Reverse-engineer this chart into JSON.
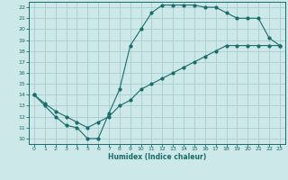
{
  "xlabel": "Humidex (Indice chaleur)",
  "bg_color": "#cce8e8",
  "grid_color": "#aacccc",
  "line_color": "#1a6b6b",
  "xlim": [
    -0.5,
    23.5
  ],
  "ylim": [
    9.5,
    22.5
  ],
  "xticks": [
    0,
    1,
    2,
    3,
    4,
    5,
    6,
    7,
    8,
    9,
    10,
    11,
    12,
    13,
    14,
    15,
    16,
    17,
    18,
    19,
    20,
    21,
    22,
    23
  ],
  "yticks": [
    10,
    11,
    12,
    13,
    14,
    15,
    16,
    17,
    18,
    19,
    20,
    21,
    22
  ],
  "line1_x": [
    0,
    1,
    2,
    3,
    4,
    5,
    6,
    7,
    8,
    9,
    10,
    11,
    12,
    13,
    14,
    15,
    16,
    17,
    18,
    19,
    20,
    21,
    22,
    23
  ],
  "line1_y": [
    14.0,
    13.0,
    12.0,
    11.2,
    11.0,
    10.0,
    10.0,
    12.3,
    14.5,
    18.5,
    20.0,
    21.5,
    22.2,
    22.2,
    22.2,
    22.2,
    22.0,
    22.0,
    21.5,
    21.0,
    21.0,
    21.0,
    19.2,
    18.5
  ],
  "line2_x": [
    0,
    1,
    2,
    3,
    4,
    5,
    6,
    7,
    8,
    9,
    10,
    11,
    12,
    13,
    14,
    15,
    16,
    17,
    18,
    19,
    20,
    21,
    22,
    23
  ],
  "line2_y": [
    14.0,
    13.2,
    12.5,
    12.0,
    11.5,
    11.0,
    11.5,
    12.0,
    13.0,
    13.5,
    14.5,
    15.0,
    15.5,
    16.0,
    16.5,
    17.0,
    17.5,
    18.0,
    18.5,
    18.5,
    18.5,
    18.5,
    18.5,
    18.5
  ]
}
